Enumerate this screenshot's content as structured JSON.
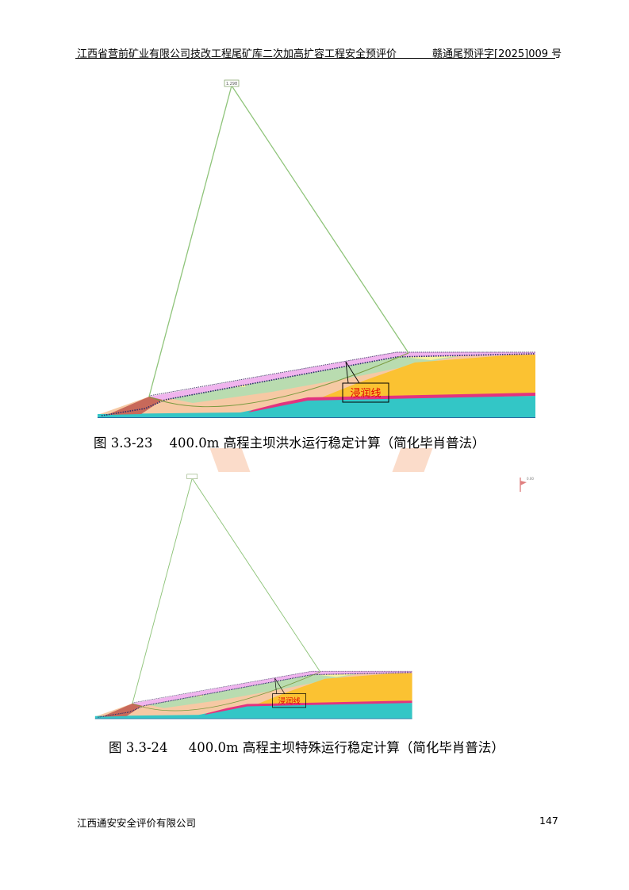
{
  "header": {
    "left": "江西省营前矿业有限公司技改工程尾矿库二次加高扩容工程安全预评价",
    "right": "赣通尾预评字[2025]009 号"
  },
  "figures": [
    {
      "safety_factor": "1.298",
      "phreatic_label": "浸润线",
      "caption": "图 3.3-23    400.0m 高程主坝洪水运行稳定计算（简化毕肖普法）"
    },
    {
      "safety_factor": "",
      "phreatic_label": "浸润线",
      "caption": "图 3.3-24     400.0m 高程主坝特殊运行稳定计算（简化毕肖普法）"
    }
  ],
  "colors": {
    "bedrock": "#33c6c6",
    "tailings_gold": "#fbc232",
    "peach": "#f6c9a4",
    "green": "#b9dcb0",
    "pink": "#f0b4ee",
    "magenta": "#e2337f",
    "starter_dam": "#c8695a",
    "slip_line": "#8fc47a",
    "phreatic_dots": "#2a2a6a",
    "label_red": "#e00000"
  },
  "footer": {
    "company": "江西通安安全评价有限公司",
    "page_number": "147"
  }
}
